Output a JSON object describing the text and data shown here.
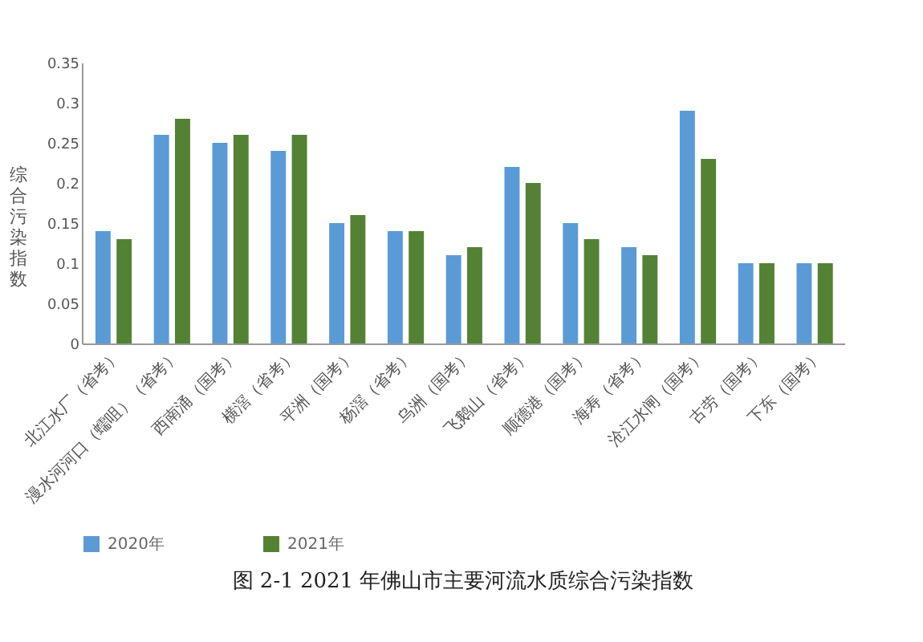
{
  "chart_data": {
    "type": "bar",
    "title": "图 2-1 2021 年佛山市主要河流水质综合污染指数",
    "ylabel": "综合污染指数",
    "categories": [
      "北江水厂（省考）",
      "漫水河河口（蠕咀）（省考）",
      "西南涌（国考）",
      "横滘（省考）",
      "平洲（国考）",
      "杨滘（省考）",
      "乌洲（国考）",
      "飞鹅山（省考）",
      "顺德港（国考）",
      "海寿（省考）",
      "沧江水闸（国考）",
      "古劳（国考）",
      "下东（国考）"
    ],
    "series": [
      {
        "name": "2020年",
        "color": "#5b9bd5",
        "values": [
          0.14,
          0.26,
          0.25,
          0.24,
          0.15,
          0.14,
          0.11,
          0.22,
          0.15,
          0.12,
          0.29,
          0.1,
          0.1
        ]
      },
      {
        "name": "2021年",
        "color": "#548235",
        "values": [
          0.13,
          0.28,
          0.26,
          0.26,
          0.16,
          0.14,
          0.12,
          0.2,
          0.13,
          0.11,
          0.23,
          0.1,
          0.1
        ]
      }
    ],
    "ylim": [
      0,
      0.35
    ],
    "yticks": [
      0,
      0.05,
      0.1,
      0.15,
      0.2,
      0.25,
      0.3,
      0.35
    ],
    "grid": false,
    "legend": "bottom"
  }
}
